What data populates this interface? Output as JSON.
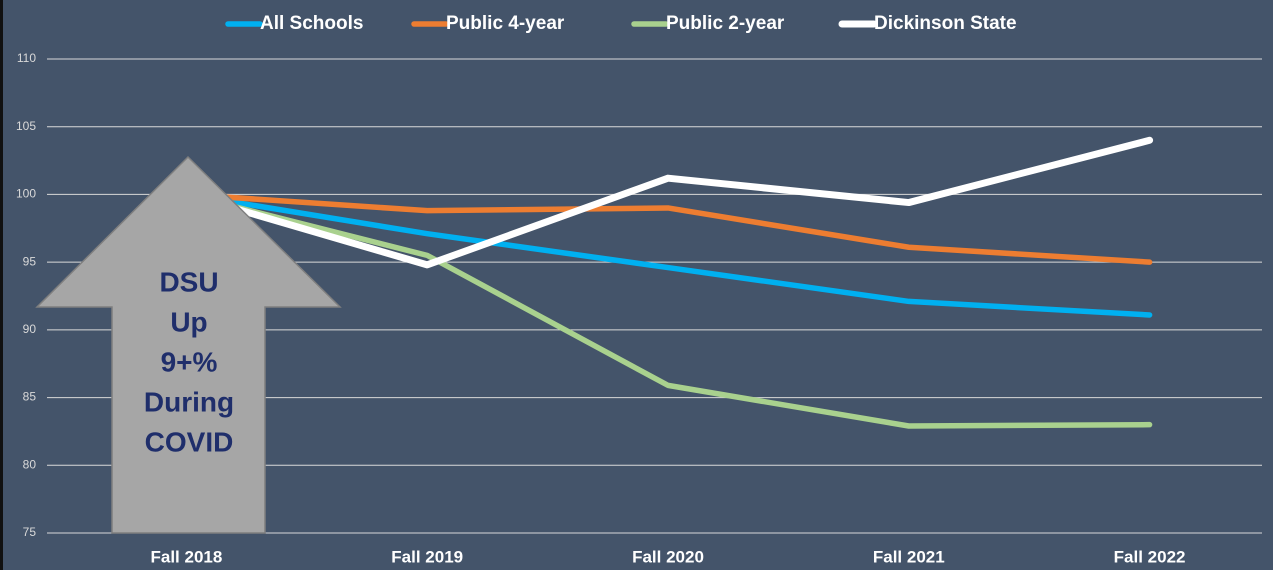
{
  "chart_data": {
    "type": "line",
    "categories": [
      "Fall 2018",
      "Fall 2019",
      "Fall 2020",
      "Fall 2021",
      "Fall 2022"
    ],
    "series": [
      {
        "name": "All Schools",
        "color": "#00b0f0",
        "values": [
          100,
          97.1,
          94.6,
          92.1,
          91.1
        ]
      },
      {
        "name": "Public 4-year",
        "color": "#ed7d31",
        "values": [
          100,
          98.8,
          99.0,
          96.1,
          95.0
        ]
      },
      {
        "name": "Public 2-year",
        "color": "#a9d18e",
        "values": [
          100,
          95.5,
          85.9,
          82.9,
          83.0
        ]
      },
      {
        "name": "Dickinson State",
        "color": "#ffffff",
        "values": [
          100,
          94.8,
          101.2,
          99.4,
          104.0
        ]
      }
    ],
    "ylim": [
      75,
      110
    ],
    "yticks": [
      75,
      80,
      85,
      90,
      95,
      100,
      105,
      110
    ],
    "grid": true,
    "legend": "top",
    "annotation": [
      "DSU",
      "Up",
      "9+%",
      "During",
      "COVID"
    ]
  }
}
